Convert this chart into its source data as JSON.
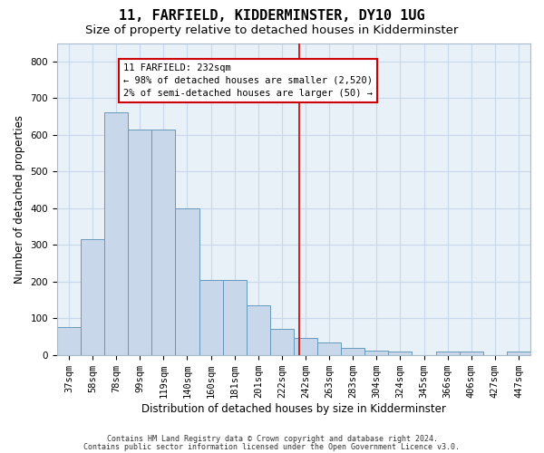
{
  "title": "11, FARFIELD, KIDDERMINSTER, DY10 1UG",
  "subtitle": "Size of property relative to detached houses in Kidderminster",
  "xlabel": "Distribution of detached houses by size in Kidderminster",
  "ylabel": "Number of detached properties",
  "bar_color": "#c8d8ea",
  "bar_edge_color": "#6699bb",
  "grid_color": "#c8d8ea",
  "background_color": "#e8f0f8",
  "categories": [
    "37sqm",
    "58sqm",
    "78sqm",
    "99sqm",
    "119sqm",
    "140sqm",
    "160sqm",
    "181sqm",
    "201sqm",
    "222sqm",
    "242sqm",
    "263sqm",
    "283sqm",
    "304sqm",
    "324sqm",
    "345sqm",
    "366sqm",
    "406sqm",
    "427sqm",
    "447sqm"
  ],
  "values": [
    75,
    315,
    660,
    615,
    615,
    400,
    205,
    205,
    135,
    70,
    45,
    35,
    18,
    12,
    10,
    0,
    8,
    8,
    0,
    8
  ],
  "vline_x": 9.75,
  "vline_color": "#cc0000",
  "annotation_text": "11 FARFIELD: 232sqm\n← 98% of detached houses are smaller (2,520)\n2% of semi-detached houses are larger (50) →",
  "annotation_box_color": "#cc0000",
  "ylim": [
    0,
    850
  ],
  "yticks": [
    0,
    100,
    200,
    300,
    400,
    500,
    600,
    700,
    800
  ],
  "footer_line1": "Contains HM Land Registry data © Crown copyright and database right 2024.",
  "footer_line2": "Contains public sector information licensed under the Open Government Licence v3.0.",
  "title_fontsize": 11,
  "subtitle_fontsize": 9.5,
  "tick_fontsize": 7.5,
  "label_fontsize": 8.5,
  "annotation_fontsize": 7.5,
  "footer_fontsize": 6
}
